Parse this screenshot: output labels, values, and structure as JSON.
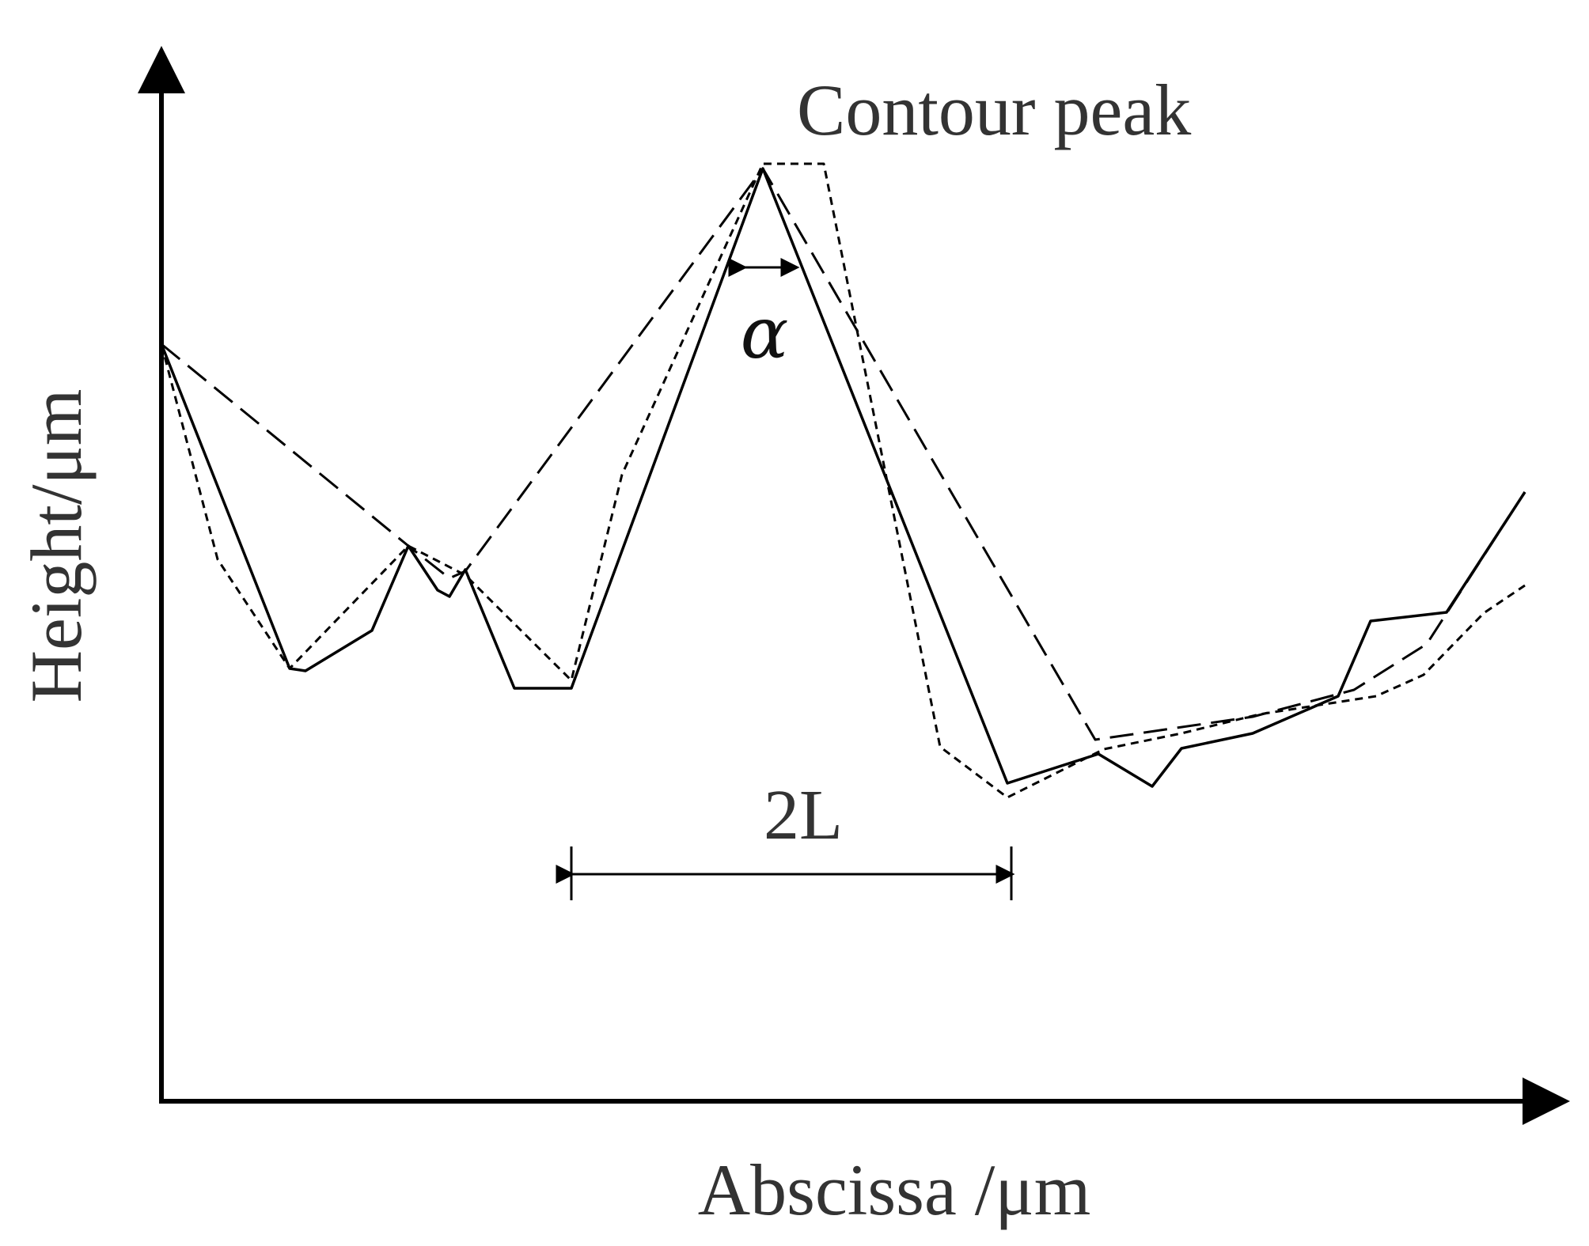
{
  "figure": {
    "y_axis_label": "Height/μm",
    "x_axis_label": "Abscissa /μm",
    "peak_label": "Contour peak",
    "angle_label": "α",
    "span_label": "2L"
  }
}
